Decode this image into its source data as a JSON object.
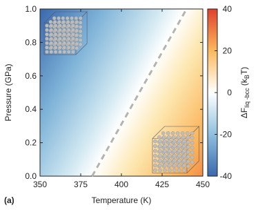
{
  "chart_data": {
    "type": "heatmap",
    "panel_label": "(a)",
    "x_label": "Temperature (K)",
    "y_label": "Pressure (GPa)",
    "xlim": [
      350,
      450
    ],
    "xticks": [
      350,
      375,
      400,
      425,
      450
    ],
    "ylim": [
      0,
      1
    ],
    "yticks": [
      {
        "value": 0,
        "label": "0.0"
      },
      0.2,
      0.4,
      0.6,
      0.8,
      {
        "value": 1,
        "label": "1.0"
      }
    ],
    "colorbar_label": {
      "main": "ΔF",
      "sub": "liq -bcc",
      "unit_open": " (k",
      "unit_sub": "B",
      "unit_close": "T)"
    },
    "clim": [
      -40,
      40
    ],
    "cticks": [
      -40,
      -20,
      0,
      20,
      40
    ],
    "coexistence_line": {
      "x": [
        382,
        440
      ],
      "y": [
        0,
        1
      ],
      "color": "#b3b3b3"
    }
  }
}
